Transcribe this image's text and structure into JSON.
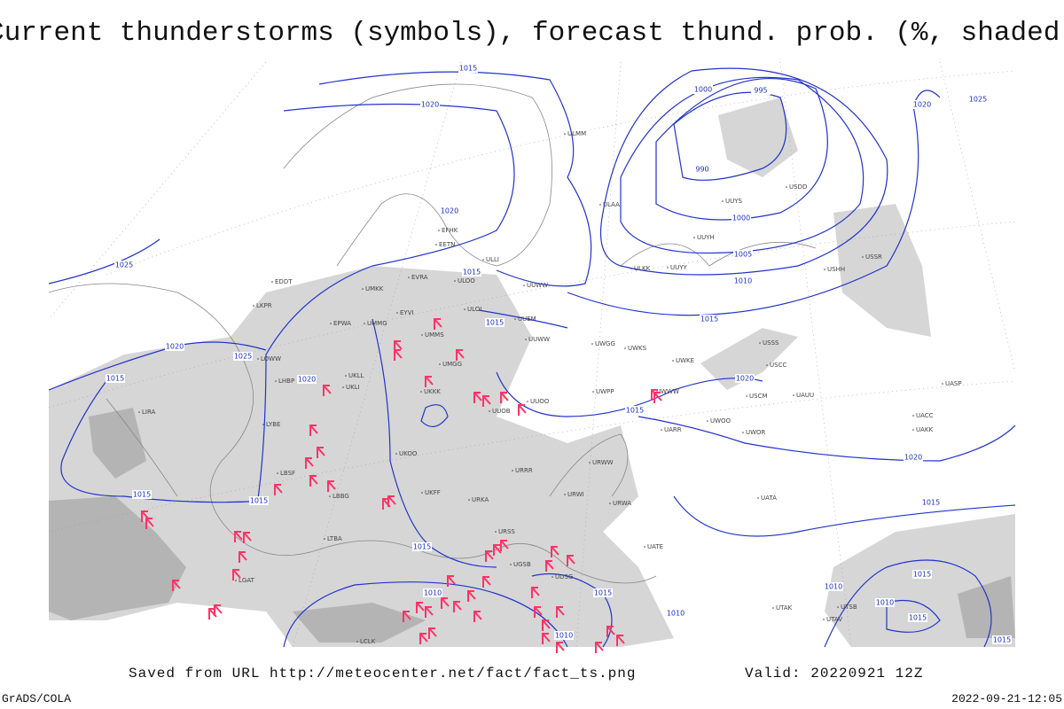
{
  "title": "Current thunderstorms (symbols), forecast thund. prob. (%, shaded)",
  "footer": {
    "source": "Saved from URL http://meteocenter.net/fact/fact_ts.png",
    "valid": "Valid: 20220921 12Z",
    "credit": "GrADS/COLA",
    "timestamp": "2022-09-21-12:05"
  },
  "isobar_labels": [
    "1015",
    "1020",
    "1000",
    "995",
    "990",
    "1000",
    "1005",
    "1010",
    "1015",
    "1020",
    "1025",
    "1020",
    "1015",
    "1015",
    "1025",
    "1020",
    "1025",
    "1015",
    "1020",
    "1015",
    "1020",
    "1020",
    "1015",
    "1015",
    "1015",
    "1015",
    "1010",
    "1015",
    "1010",
    "1010",
    "1010",
    "1015",
    "1010",
    "1015",
    "1015"
  ],
  "stations": [
    "ULMM",
    "ULAA",
    "ULOL",
    "UUEM",
    "UUWW",
    "UWGG",
    "UWKS",
    "UWKE",
    "UWWW",
    "UWPP",
    "UUOO",
    "UUOB",
    "URWW",
    "URRR",
    "URWI",
    "URWA",
    "UATA",
    "UATE",
    "UUYY",
    "ULKK",
    "UUYH",
    "UUYS",
    "USDD",
    "ULOO",
    "EETN",
    "EFHK",
    "ULLI",
    "UMKK",
    "EVRA",
    "EYVI",
    "UMMS",
    "UMMG",
    "UMGG",
    "UKKK",
    "UKLL",
    "UKLI",
    "EPWA",
    "UKOO",
    "UKFF",
    "URKA",
    "URSS",
    "UGSB",
    "UDSG",
    "UTAK",
    "UTAV",
    "UTSB",
    "LTBA",
    "LBBG",
    "LBSF",
    "LYBE",
    "LHBP",
    "LOWW",
    "LKPR",
    "EDDT",
    "LIRA",
    "LGAT",
    "LCLK",
    "UACC",
    "UAKK",
    "UASP",
    "USSS",
    "USCC",
    "USCM",
    "UAUU",
    "UWOO",
    "UWOR",
    "UARR",
    "USHH",
    "USSR",
    "UUWW"
  ]
}
